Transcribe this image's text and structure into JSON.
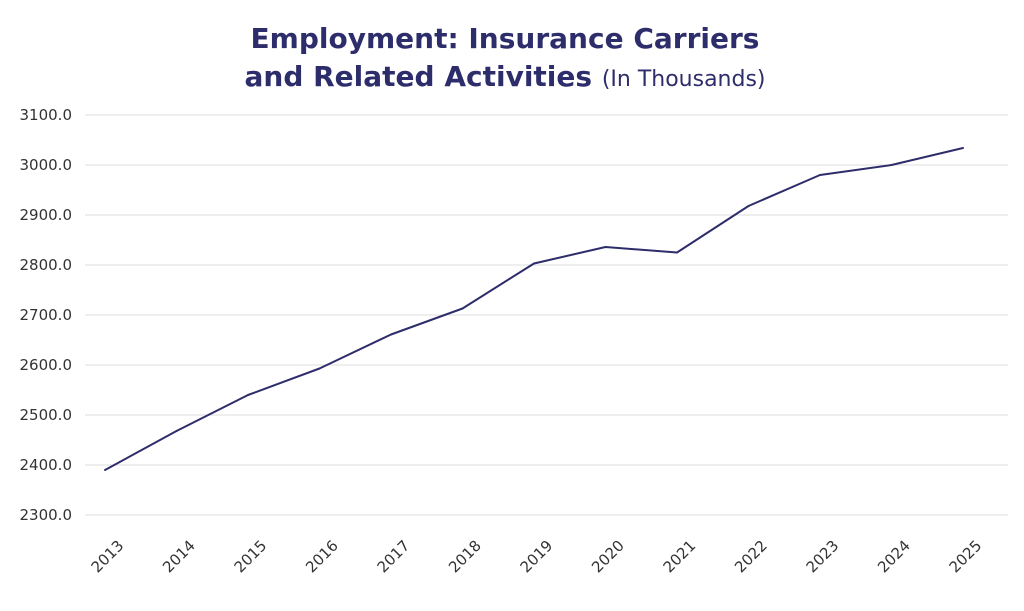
{
  "chart_data": {
    "type": "line",
    "title_line1": "Employment: Insurance Carriers",
    "title_line2": "and Related Activities",
    "subtitle": "(In Thousands)",
    "xlabel": "",
    "ylabel": "",
    "ylim": [
      2300.0,
      3100.0
    ],
    "yticks": [
      "2300.0",
      "2400.0",
      "2500.0",
      "2600.0",
      "2700.0",
      "2800.0",
      "2900.0",
      "3000.0",
      "3100.0"
    ],
    "x_labels": [
      "2013",
      "2014",
      "2015",
      "2016",
      "2017",
      "2018",
      "2019",
      "2020",
      "2021",
      "2022",
      "2023",
      "2024",
      "2025"
    ],
    "grid": true,
    "series": [
      {
        "color": "#2e2d6b",
        "values": [
          2390,
          2468,
          2540,
          2593,
          2661,
          2713,
          2803,
          2836,
          2825,
          2918,
          2980,
          3000,
          3034
        ]
      }
    ]
  }
}
